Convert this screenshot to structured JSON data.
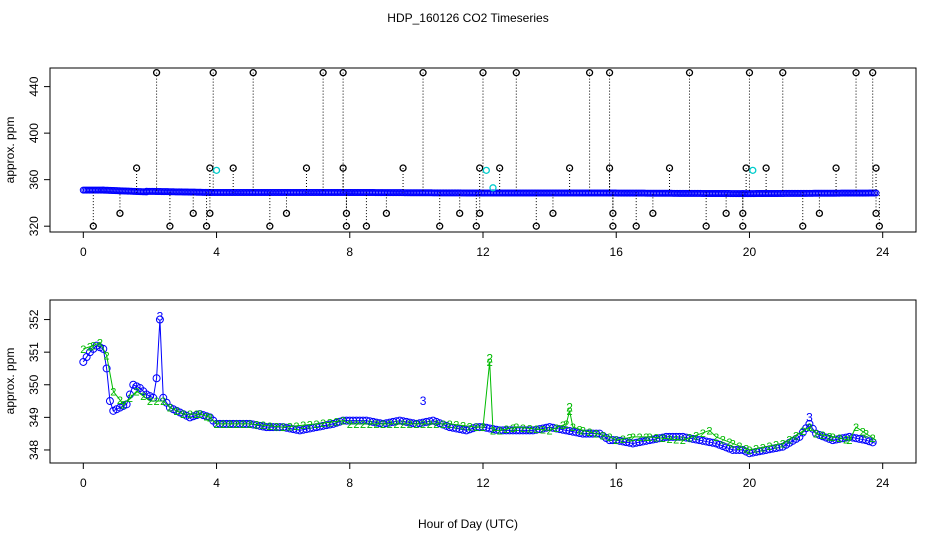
{
  "colors": {
    "primary_points": "#0000ff",
    "outlier_points": "#000000",
    "highlight_points": "#00cccc",
    "series_2": "#00bb00",
    "series_3": "#0000ff",
    "frame": "#000000"
  },
  "chart_data": {
    "title": "HDP_160126  CO2 Timeseries",
    "xlabel": "Hour of Day (UTC)",
    "xlim": [
      -1,
      25
    ],
    "xticks": [
      "0",
      "4",
      "8",
      "12",
      "16",
      "20",
      "24"
    ],
    "panels": [
      {
        "type": "scatter",
        "ylabel": "approx. ppm",
        "ylim": [
          315,
          456
        ],
        "yticks": [
          "320",
          "360",
          "400",
          "440"
        ],
        "grid": false,
        "series": [
          {
            "marker": "circle",
            "color_key": "primary_points",
            "baseline_segments": [
              {
                "x": [
                  0.0,
                  0.6
                ],
                "y": [
                  351,
                  351
                ]
              },
              {
                "x": [
                  0.6,
                  1.9
                ],
                "y": [
                  351,
                  349.5
                ]
              },
              {
                "x": [
                  1.9,
                  3.8
                ],
                "y": [
                  350,
                  349
                ]
              },
              {
                "x": [
                  3.8,
                  8.0
                ],
                "y": [
                  349,
                  349
                ]
              },
              {
                "x": [
                  8.0,
                  12.0
                ],
                "y": [
                  349,
                  348.5
                ]
              },
              {
                "x": [
                  12.0,
                  15.8
                ],
                "y": [
                  348.5,
                  348.5
                ]
              },
              {
                "x": [
                  15.8,
                  19.8
                ],
                "y": [
                  348.5,
                  348
                ]
              },
              {
                "x": [
                  19.8,
                  23.8
                ],
                "y": [
                  348,
                  348.5
                ]
              }
            ]
          },
          {
            "marker": "circle",
            "color_key": "outlier_points",
            "drop_lines": true,
            "points": [
              [
                0.3,
                320
              ],
              [
                1.1,
                331
              ],
              [
                1.6,
                370
              ],
              [
                2.2,
                452
              ],
              [
                2.6,
                320
              ],
              [
                3.3,
                331
              ],
              [
                3.7,
                320
              ],
              [
                3.8,
                331
              ],
              [
                3.8,
                370
              ],
              [
                3.9,
                452
              ],
              [
                4.5,
                370
              ],
              [
                5.1,
                452
              ],
              [
                5.6,
                320
              ],
              [
                6.1,
                331
              ],
              [
                6.7,
                370
              ],
              [
                7.2,
                452
              ],
              [
                7.8,
                452
              ],
              [
                7.8,
                370
              ],
              [
                7.9,
                331
              ],
              [
                7.9,
                320
              ],
              [
                8.5,
                320
              ],
              [
                9.1,
                331
              ],
              [
                9.6,
                370
              ],
              [
                10.2,
                452
              ],
              [
                10.7,
                320
              ],
              [
                11.3,
                331
              ],
              [
                11.8,
                320
              ],
              [
                11.9,
                331
              ],
              [
                11.9,
                370
              ],
              [
                12.0,
                452
              ],
              [
                12.5,
                370
              ],
              [
                13.0,
                452
              ],
              [
                13.6,
                320
              ],
              [
                14.1,
                331
              ],
              [
                14.6,
                370
              ],
              [
                15.2,
                452
              ],
              [
                15.8,
                452
              ],
              [
                15.8,
                370
              ],
              [
                15.9,
                331
              ],
              [
                15.9,
                320
              ],
              [
                16.6,
                320
              ],
              [
                17.1,
                331
              ],
              [
                17.6,
                370
              ],
              [
                18.2,
                452
              ],
              [
                18.7,
                320
              ],
              [
                19.3,
                331
              ],
              [
                19.8,
                320
              ],
              [
                19.8,
                331
              ],
              [
                19.9,
                370
              ],
              [
                20.0,
                452
              ],
              [
                20.5,
                370
              ],
              [
                21.0,
                452
              ],
              [
                21.6,
                320
              ],
              [
                22.1,
                331
              ],
              [
                22.6,
                370
              ],
              [
                23.2,
                452
              ],
              [
                23.7,
                452
              ],
              [
                23.8,
                370
              ],
              [
                23.8,
                331
              ],
              [
                23.9,
                320
              ]
            ]
          },
          {
            "marker": "circle",
            "color_key": "highlight_points",
            "points": [
              [
                4.0,
                368
              ],
              [
                12.1,
                368
              ],
              [
                12.3,
                353
              ],
              [
                20.1,
                368
              ]
            ]
          }
        ]
      },
      {
        "type": "line",
        "ylabel": "approx. ppm",
        "ylim": [
          347.6,
          352.6
        ],
        "yticks": [
          "348",
          "349",
          "350",
          "351",
          "352"
        ],
        "grid": false,
        "markers": [
          {
            "label": "3",
            "color_key": "series_3",
            "x": 2.3,
            "y": 352.1
          },
          {
            "label": "2",
            "color_key": "series_2",
            "x": 12.2,
            "y": 350.8
          },
          {
            "label": "2",
            "color_key": "series_2",
            "x": 14.6,
            "y": 349.3
          },
          {
            "label": "3",
            "color_key": "series_3",
            "x": 10.2,
            "y": 349.5
          },
          {
            "label": "3",
            "color_key": "series_3",
            "x": 21.8,
            "y": 349.0
          }
        ],
        "series": [
          {
            "name": "3",
            "color_key": "series_3",
            "x": [
              0.0,
              0.2,
              0.4,
              0.6,
              0.7,
              0.8,
              0.9,
              1.1,
              1.3,
              1.5,
              1.7,
              1.9,
              2.1,
              2.2,
              2.3,
              2.4,
              2.6,
              2.8,
              3.0,
              3.2,
              3.5,
              3.8,
              4.0,
              4.5,
              5.0,
              5.5,
              6.0,
              6.5,
              7.0,
              7.5,
              7.8,
              8.0,
              8.5,
              9.0,
              9.5,
              10.0,
              10.5,
              11.0,
              11.5,
              11.8,
              12.0,
              12.5,
              13.0,
              13.5,
              14.0,
              14.5,
              15.0,
              15.5,
              15.8,
              16.0,
              16.5,
              17.0,
              17.5,
              18.0,
              18.5,
              19.0,
              19.5,
              19.8,
              20.0,
              20.5,
              21.0,
              21.5,
              21.8,
              22.0,
              22.5,
              23.0,
              23.5,
              23.8
            ],
            "values": [
              350.7,
              351.0,
              351.2,
              351.1,
              350.5,
              349.5,
              349.2,
              349.3,
              349.4,
              350.0,
              349.9,
              349.7,
              349.6,
              350.2,
              352.0,
              349.6,
              349.3,
              349.2,
              349.1,
              349.0,
              349.1,
              349.0,
              348.8,
              348.8,
              348.8,
              348.7,
              348.7,
              348.6,
              348.7,
              348.8,
              348.9,
              348.9,
              348.9,
              348.8,
              348.9,
              348.8,
              348.9,
              348.7,
              348.6,
              348.7,
              348.7,
              348.6,
              348.6,
              348.6,
              348.7,
              348.6,
              348.5,
              348.5,
              348.3,
              348.3,
              348.2,
              348.3,
              348.4,
              348.4,
              348.3,
              348.2,
              348.0,
              348.0,
              347.9,
              348.0,
              348.1,
              348.4,
              348.8,
              348.5,
              348.3,
              348.4,
              348.3,
              348.2
            ]
          },
          {
            "name": "2",
            "color_key": "series_2",
            "x": [
              0.0,
              0.3,
              0.5,
              0.7,
              0.9,
              1.2,
              1.6,
              2.0,
              2.4,
              2.6,
              3.0,
              3.5,
              3.8,
              4.0,
              5.0,
              6.0,
              7.0,
              7.8,
              8.0,
              9.0,
              10.0,
              11.0,
              11.8,
              12.0,
              12.2,
              12.3,
              12.5,
              13.0,
              14.0,
              14.5,
              14.6,
              14.7,
              15.0,
              15.8,
              16.0,
              16.5,
              17.0,
              18.0,
              18.8,
              19.0,
              19.5,
              20.0,
              21.0,
              21.8,
              22.0,
              22.5,
              23.0,
              23.2,
              23.5,
              23.8
            ],
            "values": [
              351.1,
              351.2,
              351.3,
              350.9,
              349.8,
              349.4,
              349.8,
              349.5,
              349.5,
              349.3,
              349.1,
              349.1,
              349.0,
              348.8,
              348.8,
              348.7,
              348.8,
              348.9,
              348.8,
              348.8,
              348.8,
              348.8,
              348.7,
              348.7,
              350.7,
              348.6,
              348.6,
              348.7,
              348.6,
              348.8,
              349.2,
              348.7,
              348.6,
              348.4,
              348.3,
              348.4,
              348.4,
              348.3,
              348.6,
              348.4,
              348.2,
              348.0,
              348.2,
              348.7,
              348.5,
              348.4,
              348.3,
              348.7,
              348.5,
              348.3
            ]
          }
        ]
      }
    ]
  }
}
